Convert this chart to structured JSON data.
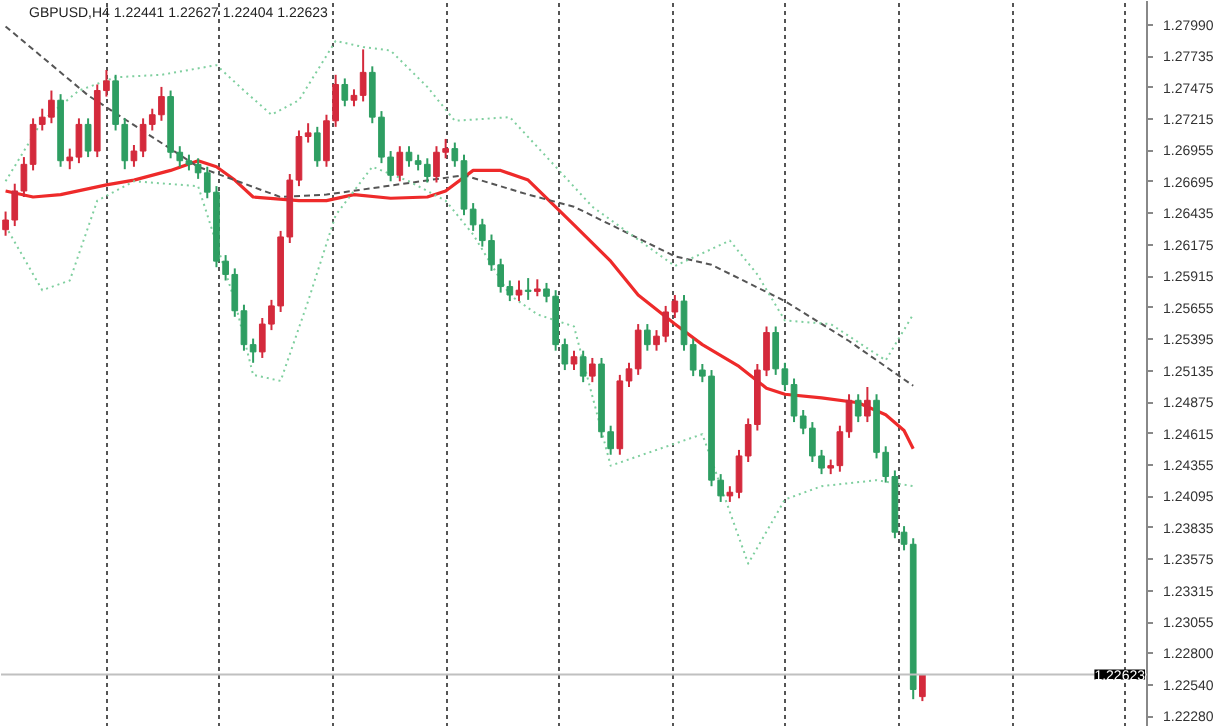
{
  "chart_data": {
    "type": "candlestick",
    "title": "GBPUSD,H4  1.22441 1.22627 1.22404 1.22623",
    "categories": [
      null,
      null,
      null,
      null,
      null,
      null,
      null,
      null,
      null,
      null,
      null,
      null,
      null,
      null,
      null,
      null,
      null,
      null,
      null,
      null,
      null,
      null,
      null,
      null,
      null,
      null,
      null,
      null,
      null,
      null,
      null,
      null,
      null,
      null,
      null,
      null,
      null,
      null,
      null,
      null,
      null,
      null,
      null,
      null,
      null,
      null,
      null,
      null,
      null,
      null,
      null,
      null,
      null,
      null,
      null,
      null,
      null,
      null,
      null,
      null,
      null,
      null,
      null,
      null,
      null,
      null,
      null,
      null,
      null,
      null,
      null,
      null,
      null,
      null,
      null,
      null,
      null,
      null,
      null,
      null,
      null,
      null,
      null,
      null,
      null,
      null,
      null,
      null,
      null,
      null,
      null,
      null,
      null,
      null,
      null,
      null,
      null,
      null,
      null,
      null,
      null,
      null,
      null,
      null,
      null,
      null,
      null,
      null,
      null,
      null,
      null,
      null,
      null,
      null,
      null,
      null,
      null,
      null,
      null,
      null,
      null,
      null,
      null,
      null,
      null
    ],
    "ohlc": [
      [
        1.263,
        1.2645,
        1.2625,
        1.2638
      ],
      [
        1.2638,
        1.2668,
        1.2633,
        1.2662
      ],
      [
        1.2662,
        1.269,
        1.2657,
        1.2684
      ],
      [
        1.2684,
        1.2722,
        1.2679,
        1.2717
      ],
      [
        1.2717,
        1.273,
        1.2712,
        1.2723
      ],
      [
        1.2723,
        1.2745,
        1.2718,
        1.2737
      ],
      [
        1.2737,
        1.2742,
        1.2682,
        1.2687
      ],
      [
        1.2687,
        1.2697,
        1.268,
        1.269
      ],
      [
        1.269,
        1.2722,
        1.2685,
        1.2717
      ],
      [
        1.2717,
        1.2722,
        1.269,
        1.2695
      ],
      [
        1.2695,
        1.275,
        1.269,
        1.2745
      ],
      [
        1.2745,
        1.2762,
        1.274,
        1.2753
      ],
      [
        1.2753,
        1.2758,
        1.2712,
        1.2717
      ],
      [
        1.2717,
        1.2722,
        1.268,
        1.2687
      ],
      [
        1.2687,
        1.27,
        1.2682,
        1.2695
      ],
      [
        1.2695,
        1.2722,
        1.269,
        1.2717
      ],
      [
        1.2717,
        1.273,
        1.2712,
        1.2725
      ],
      [
        1.2725,
        1.2748,
        1.272,
        1.274
      ],
      [
        1.274,
        1.2745,
        1.2689,
        1.2694
      ],
      [
        1.2694,
        1.2699,
        1.2682,
        1.2687
      ],
      [
        1.2687,
        1.2692,
        1.2679,
        1.2684
      ],
      [
        1.2684,
        1.2689,
        1.2672,
        1.2677
      ],
      [
        1.2677,
        1.2682,
        1.2656,
        1.2661
      ],
      [
        1.2661,
        1.2666,
        1.2599,
        1.2604
      ],
      [
        1.2604,
        1.2609,
        1.2588,
        1.2593
      ],
      [
        1.2593,
        1.2598,
        1.2558,
        1.2563
      ],
      [
        1.2563,
        1.2568,
        1.253,
        1.2535
      ],
      [
        1.2535,
        1.254,
        1.252,
        1.2529
      ],
      [
        1.2529,
        1.2557,
        1.2524,
        1.2552
      ],
      [
        1.2552,
        1.2572,
        1.2547,
        1.2567
      ],
      [
        1.2567,
        1.2629,
        1.2562,
        1.2624
      ],
      [
        1.2624,
        1.2676,
        1.2619,
        1.2671
      ],
      [
        1.2671,
        1.2712,
        1.2666,
        1.2707
      ],
      [
        1.2707,
        1.2718,
        1.2702,
        1.271
      ],
      [
        1.271,
        1.2715,
        1.2682,
        1.2687
      ],
      [
        1.2687,
        1.2725,
        1.2682,
        1.272
      ],
      [
        1.272,
        1.2758,
        1.2715,
        1.275
      ],
      [
        1.275,
        1.2755,
        1.2732,
        1.2737
      ],
      [
        1.2737,
        1.2746,
        1.2732,
        1.2741
      ],
      [
        1.2741,
        1.2779,
        1.2736,
        1.276
      ],
      [
        1.276,
        1.2765,
        1.2718,
        1.2723
      ],
      [
        1.2723,
        1.2728,
        1.2685,
        1.269
      ],
      [
        1.269,
        1.2695,
        1.267,
        1.2675
      ],
      [
        1.2675,
        1.2699,
        1.267,
        1.2694
      ],
      [
        1.2694,
        1.2699,
        1.2682,
        1.2687
      ],
      [
        1.2687,
        1.2692,
        1.2679,
        1.2684
      ],
      [
        1.2684,
        1.2689,
        1.2669,
        1.2674
      ],
      [
        1.2674,
        1.2699,
        1.2669,
        1.2694
      ],
      [
        1.2694,
        1.2705,
        1.2689,
        1.2697
      ],
      [
        1.2697,
        1.2702,
        1.2682,
        1.2687
      ],
      [
        1.2687,
        1.2692,
        1.2642,
        1.2647
      ],
      [
        1.2647,
        1.2652,
        1.2629,
        1.2634
      ],
      [
        1.2634,
        1.2639,
        1.2616,
        1.2621
      ],
      [
        1.2621,
        1.2626,
        1.2596,
        1.2601
      ],
      [
        1.2601,
        1.2606,
        1.2578,
        1.2583
      ],
      [
        1.2583,
        1.2588,
        1.2571,
        1.2576
      ],
      [
        1.2576,
        1.2588,
        1.2571,
        1.258
      ],
      [
        1.258,
        1.259,
        1.2572,
        1.2579
      ],
      [
        1.2579,
        1.2589,
        1.2575,
        1.2581
      ],
      [
        1.2581,
        1.2586,
        1.257,
        1.2575
      ],
      [
        1.2575,
        1.258,
        1.253,
        1.2535
      ],
      [
        1.2535,
        1.254,
        1.2514,
        1.2519
      ],
      [
        1.2519,
        1.253,
        1.2514,
        1.2525
      ],
      [
        1.2525,
        1.253,
        1.2504,
        1.2509
      ],
      [
        1.2509,
        1.2524,
        1.2504,
        1.2519
      ],
      [
        1.2519,
        1.2524,
        1.2458,
        1.2463
      ],
      [
        1.2463,
        1.2468,
        1.2444,
        1.2449
      ],
      [
        1.2449,
        1.251,
        1.2444,
        1.2505
      ],
      [
        1.2505,
        1.252,
        1.25,
        1.2515
      ],
      [
        1.2515,
        1.2552,
        1.251,
        1.2547
      ],
      [
        1.2547,
        1.2552,
        1.253,
        1.2535
      ],
      [
        1.2535,
        1.2547,
        1.253,
        1.2542
      ],
      [
        1.2542,
        1.2567,
        1.2537,
        1.2562
      ],
      [
        1.2562,
        1.2576,
        1.2557,
        1.2571
      ],
      [
        1.2571,
        1.2576,
        1.253,
        1.2535
      ],
      [
        1.2535,
        1.254,
        1.2509,
        1.2514
      ],
      [
        1.2514,
        1.2519,
        1.2504,
        1.2509
      ],
      [
        1.2509,
        1.2514,
        1.2418,
        1.2423
      ],
      [
        1.2423,
        1.2428,
        1.2405,
        1.241
      ],
      [
        1.241,
        1.2418,
        1.2405,
        1.2413
      ],
      [
        1.2413,
        1.2448,
        1.2408,
        1.2443
      ],
      [
        1.2443,
        1.2474,
        1.2438,
        1.2469
      ],
      [
        1.2469,
        1.2519,
        1.2464,
        1.2514
      ],
      [
        1.2514,
        1.255,
        1.2509,
        1.2545
      ],
      [
        1.2545,
        1.255,
        1.251,
        1.2515
      ],
      [
        1.2515,
        1.252,
        1.2497,
        1.2502
      ],
      [
        1.2502,
        1.2507,
        1.2471,
        1.2476
      ],
      [
        1.2476,
        1.2481,
        1.2461,
        1.2466
      ],
      [
        1.2466,
        1.2471,
        1.2438,
        1.2443
      ],
      [
        1.2443,
        1.2448,
        1.2428,
        1.2433
      ],
      [
        1.2433,
        1.244,
        1.2428,
        1.2435
      ],
      [
        1.2435,
        1.2468,
        1.243,
        1.2463
      ],
      [
        1.2463,
        1.2494,
        1.2458,
        1.2489
      ],
      [
        1.2489,
        1.2494,
        1.2471,
        1.2476
      ],
      [
        1.2476,
        1.25,
        1.2471,
        1.2489
      ],
      [
        1.2489,
        1.2494,
        1.2441,
        1.2446
      ],
      [
        1.2446,
        1.2451,
        1.2421,
        1.2426
      ],
      [
        1.2426,
        1.2431,
        1.2375,
        1.238
      ],
      [
        1.238,
        1.2385,
        1.2365,
        1.237
      ],
      [
        1.237,
        1.2375,
        1.2242,
        1.225
      ],
      [
        1.22441,
        1.22627,
        1.22404,
        1.22623
      ],
      null,
      null,
      null,
      null,
      null,
      null,
      null,
      null,
      null,
      null,
      null,
      null,
      null,
      null,
      null,
      null,
      null,
      null,
      null,
      null,
      null,
      null,
      null,
      null
    ],
    "colors": [
      "#d42a3c",
      "#d42a3c",
      "#d42a3c",
      "#d42a3c",
      "#d42a3c",
      "#d42a3c",
      "#2e9e62",
      "#d42a3c",
      "#d42a3c",
      "#2e9e62",
      "#d42a3c",
      "#d42a3c",
      "#2e9e62",
      "#2e9e62",
      "#d42a3c",
      "#d42a3c",
      "#d42a3c",
      "#d42a3c",
      "#2e9e62",
      "#2e9e62",
      "#2e9e62",
      "#2e9e62",
      "#2e9e62",
      "#2e9e62",
      "#2e9e62",
      "#2e9e62",
      "#2e9e62",
      "#2e9e62",
      "#d42a3c",
      "#d42a3c",
      "#d42a3c",
      "#d42a3c",
      "#d42a3c",
      "#d42a3c",
      "#2e9e62",
      "#d42a3c",
      "#d42a3c",
      "#2e9e62",
      "#d42a3c",
      "#d42a3c",
      "#2e9e62",
      "#2e9e62",
      "#2e9e62",
      "#d42a3c",
      "#2e9e62",
      "#2e9e62",
      "#2e9e62",
      "#d42a3c",
      "#d42a3c",
      "#2e9e62",
      "#2e9e62",
      "#2e9e62",
      "#2e9e62",
      "#2e9e62",
      "#2e9e62",
      "#2e9e62",
      "#d42a3c",
      "#2e9e62",
      "#d42a3c",
      "#2e9e62",
      "#2e9e62",
      "#2e9e62",
      "#d42a3c",
      "#2e9e62",
      "#d42a3c",
      "#2e9e62",
      "#2e9e62",
      "#d42a3c",
      "#d42a3c",
      "#d42a3c",
      "#2e9e62",
      "#d42a3c",
      "#d42a3c",
      "#d42a3c",
      "#2e9e62",
      "#2e9e62",
      "#2e9e62",
      "#2e9e62",
      "#2e9e62",
      "#d42a3c",
      "#d42a3c",
      "#d42a3c",
      "#d42a3c",
      "#d42a3c",
      "#2e9e62",
      "#2e9e62",
      "#2e9e62",
      "#2e9e62",
      "#2e9e62",
      "#2e9e62",
      "#d42a3c",
      "#d42a3c",
      "#d42a3c",
      "#2e9e62",
      "#d42a3c",
      "#2e9e62",
      "#2e9e62",
      "#2e9e62",
      "#2e9e62",
      "#2e9e62",
      "#d42a3c",
      null,
      null,
      null,
      null,
      null,
      null,
      null,
      null,
      null,
      null,
      null,
      null,
      null,
      null,
      null,
      null,
      null,
      null,
      null,
      null,
      null,
      null,
      null,
      null
    ],
    "series": [
      {
        "type": "line",
        "color": "#ee2a2a",
        "line_style": "solid",
        "values": [
          1.2662,
          null,
          null,
          1.2657,
          null,
          null,
          1.2659,
          null,
          null,
          null,
          null,
          1.2667,
          null,
          null,
          1.2671,
          null,
          null,
          null,
          1.2679,
          null,
          null,
          1.2687,
          null,
          1.2682,
          null,
          1.2671,
          null,
          1.2657,
          null,
          null,
          null,
          null,
          1.2654,
          null,
          null,
          1.2654,
          null,
          null,
          1.2659,
          null,
          null,
          null,
          1.2656,
          null,
          null,
          null,
          1.2657,
          null,
          1.2662,
          null,
          null,
          1.2679,
          null,
          null,
          1.2679,
          null,
          null,
          1.2671,
          null,
          null,
          null,
          null,
          1.2634,
          null,
          null,
          null,
          1.2604,
          null,
          null,
          1.2576,
          null,
          null,
          null,
          1.2552,
          null,
          null,
          1.2535,
          null,
          null,
          null,
          1.2517,
          null,
          null,
          1.2499,
          null,
          1.2494,
          null,
          null,
          null,
          1.2491,
          null,
          null,
          null,
          1.2487,
          null,
          null,
          1.2477,
          null,
          1.2464,
          1.2449,
          null,
          null,
          null,
          null,
          null,
          null,
          null,
          null,
          null,
          null,
          null,
          null,
          null,
          null,
          null,
          null,
          null,
          null,
          null,
          null,
          null,
          null,
          null,
          null,
          null
        ]
      },
      {
        "type": "line",
        "color": "#555555",
        "line_style": "dashed",
        "values": [
          1.2798,
          null,
          null,
          null,
          null,
          null,
          null,
          null,
          null,
          1.2741,
          null,
          null,
          null,
          null,
          null,
          null,
          null,
          null,
          null,
          null,
          null,
          1.2682,
          null,
          null,
          null,
          null,
          null,
          null,
          null,
          null,
          1.2657,
          null,
          null,
          null,
          null,
          1.2659,
          null,
          null,
          null,
          null,
          null,
          null,
          null,
          null,
          null,
          null,
          null,
          null,
          null,
          null,
          1.2675,
          null,
          null,
          null,
          null,
          null,
          null,
          1.2659,
          null,
          null,
          null,
          null,
          1.2649,
          null,
          null,
          null,
          null,
          null,
          null,
          null,
          null,
          null,
          null,
          1.2608,
          null,
          null,
          null,
          1.2601,
          null,
          null,
          null,
          null,
          null,
          null,
          null,
          1.2571,
          null,
          null,
          null,
          null,
          null,
          null,
          1.2538,
          null,
          null,
          null,
          null,
          null,
          null,
          1.2501,
          null,
          null,
          null,
          null,
          null,
          null,
          null,
          null,
          null,
          null,
          null,
          null,
          null,
          null,
          null,
          null,
          null,
          null,
          null,
          null,
          null,
          null,
          null,
          null,
          null
        ]
      },
      {
        "type": "line",
        "color": "#7fcf9f",
        "line_style": "dotted",
        "values": [
          1.267,
          null,
          null,
          null,
          1.272,
          null,
          null,
          null,
          1.2745,
          null,
          null,
          null,
          1.2756,
          null,
          null,
          null,
          null,
          1.2758,
          null,
          null,
          null,
          null,
          null,
          1.2766,
          null,
          null,
          1.2745,
          null,
          null,
          1.2725,
          null,
          null,
          1.2737,
          null,
          null,
          null,
          1.2786,
          null,
          null,
          1.2781,
          null,
          null,
          1.2778,
          null,
          null,
          null,
          1.2748,
          null,
          null,
          1.272,
          null,
          null,
          null,
          null,
          null,
          1.2723,
          null,
          null,
          null,
          null,
          1.2682,
          null,
          null,
          null,
          1.2649,
          null,
          null,
          null,
          null,
          null,
          null,
          null,
          null,
          1.26,
          null,
          null,
          null,
          null,
          null,
          1.2621,
          null,
          null,
          1.2593,
          null,
          null,
          1.2555,
          null,
          null,
          null,
          null,
          1.2552,
          null,
          null,
          null,
          null,
          null,
          1.2522,
          null,
          null,
          1.256,
          null,
          null,
          null,
          null,
          null,
          null,
          null,
          null,
          null,
          null,
          null,
          null,
          null,
          null,
          null,
          null,
          null,
          null,
          null,
          null,
          null,
          null,
          null,
          null,
          null
        ]
      },
      {
        "type": "line",
        "color": "#7fcf9f",
        "line_style": "dotted",
        "values": [
          1.2633,
          null,
          null,
          null,
          1.258,
          null,
          null,
          1.2588,
          null,
          null,
          1.2654,
          null,
          null,
          null,
          1.267,
          null,
          null,
          null,
          null,
          null,
          null,
          1.2666,
          null,
          null,
          null,
          1.2571,
          null,
          1.251,
          null,
          null,
          1.2505,
          null,
          null,
          1.2571,
          null,
          null,
          1.2642,
          null,
          null,
          null,
          1.2682,
          null,
          null,
          null,
          1.267,
          null,
          null,
          null,
          1.2654,
          null,
          null,
          1.2626,
          null,
          null,
          null,
          1.2576,
          null,
          null,
          1.256,
          null,
          null,
          null,
          1.255,
          null,
          null,
          null,
          1.2435,
          null,
          null,
          null,
          null,
          null,
          null,
          null,
          null,
          null,
          1.2461,
          null,
          null,
          null,
          null,
          1.2354,
          null,
          null,
          null,
          1.2407,
          null,
          null,
          null,
          1.2418,
          null,
          null,
          null,
          null,
          null,
          1.2423,
          null,
          null,
          null,
          1.2418,
          null,
          null,
          null,
          null,
          null,
          null,
          null,
          null,
          null,
          null,
          null,
          null,
          null,
          null,
          null,
          null,
          null,
          null,
          null,
          null,
          null,
          null,
          null,
          null,
          null
        ]
      }
    ],
    "ylim": [
      1.2219,
      1.2819
    ],
    "yticks": [
      {
        "value": 1.2799,
        "label": "1.27990"
      },
      1.27735,
      1.27475,
      1.27215,
      1.26955,
      1.26695,
      1.26435,
      1.26175,
      1.25915,
      1.25655,
      1.25395,
      1.25135,
      1.24875,
      1.24615,
      1.24355,
      1.24095,
      1.23835,
      1.23575,
      1.23315,
      1.23055,
      {
        "value": 1.228,
        "label": "1.22800"
      },
      {
        "value": 1.2254,
        "label": "1.22540"
      },
      {
        "value": 1.2228,
        "label": "1.22280"
      }
    ],
    "ref_lines": [
      {
        "axis": "y",
        "value": 1.22623,
        "label": "1.22623",
        "color": "#c0c0c0"
      }
    ],
    "grid": "x",
    "tick_labels": "y"
  }
}
